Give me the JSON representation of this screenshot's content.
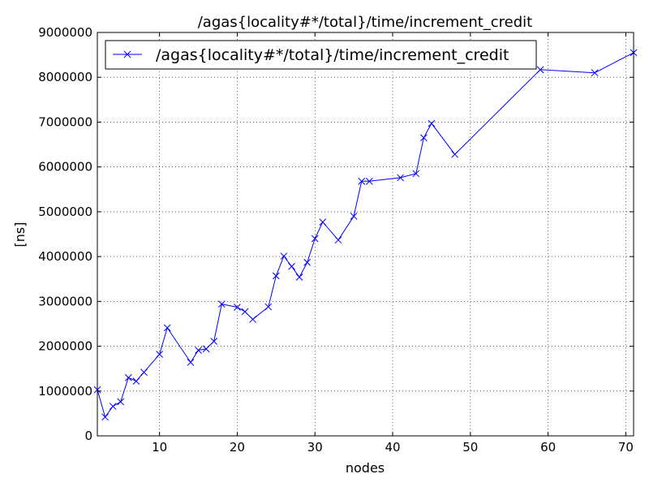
{
  "chart_data": {
    "type": "line",
    "title": "/agas{locality#*/total}/time/increment_credit",
    "xlabel": "nodes",
    "ylabel": "[ns]",
    "xlim": [
      2,
      71
    ],
    "ylim": [
      0,
      9000000
    ],
    "xticks": [
      10,
      20,
      30,
      40,
      50,
      60,
      70
    ],
    "yticks": [
      0,
      1000000,
      2000000,
      3000000,
      4000000,
      5000000,
      6000000,
      7000000,
      8000000,
      9000000
    ],
    "grid": true,
    "legend_position": "top-left",
    "series": [
      {
        "name": "/agas{locality#*/total}/time/increment_credit",
        "color": "#0000ff",
        "marker": "x",
        "points": [
          [
            2,
            1030000
          ],
          [
            3,
            420000
          ],
          [
            4,
            660000
          ],
          [
            5,
            760000
          ],
          [
            6,
            1300000
          ],
          [
            7,
            1220000
          ],
          [
            8,
            1420000
          ],
          [
            10,
            1820000
          ],
          [
            11,
            2410000
          ],
          [
            14,
            1640000
          ],
          [
            15,
            1910000
          ],
          [
            16,
            1940000
          ],
          [
            17,
            2110000
          ],
          [
            18,
            2940000
          ],
          [
            20,
            2870000
          ],
          [
            21,
            2770000
          ],
          [
            22,
            2600000
          ],
          [
            24,
            2880000
          ],
          [
            25,
            3570000
          ],
          [
            26,
            4010000
          ],
          [
            27,
            3780000
          ],
          [
            28,
            3540000
          ],
          [
            29,
            3870000
          ],
          [
            30,
            4400000
          ],
          [
            31,
            4770000
          ],
          [
            33,
            4370000
          ],
          [
            35,
            4900000
          ],
          [
            36,
            5680000
          ],
          [
            37,
            5680000
          ],
          [
            41,
            5760000
          ],
          [
            43,
            5850000
          ],
          [
            44,
            6650000
          ],
          [
            45,
            6970000
          ],
          [
            48,
            6280000
          ],
          [
            59,
            8170000
          ],
          [
            66,
            8100000
          ],
          [
            71,
            8550000
          ]
        ]
      }
    ]
  }
}
